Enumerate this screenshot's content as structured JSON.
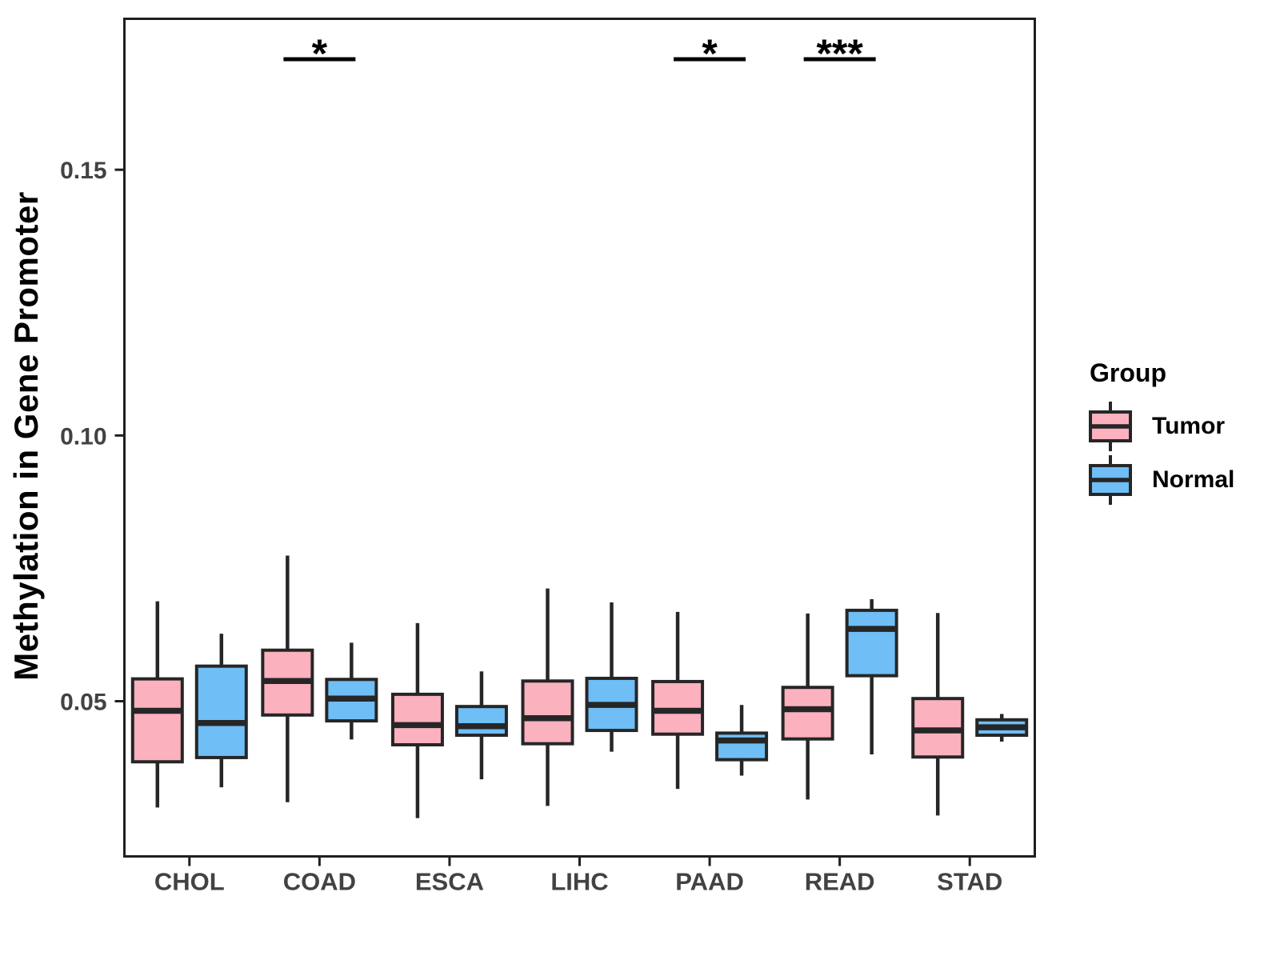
{
  "chart_data": {
    "type": "grouped_boxplot",
    "title": "",
    "xlabel": "",
    "ylabel": "Methylation in Gene Promoter",
    "categories": [
      "CHOL",
      "COAD",
      "ESCA",
      "LIHC",
      "PAAD",
      "READ",
      "STAD"
    ],
    "groups": [
      {
        "name": "Tumor",
        "color": "#FBB1BE"
      },
      {
        "name": "Normal",
        "color": "#6FBEF6"
      }
    ],
    "ylim": [
      0.0208,
      0.1784
    ],
    "yticks": [
      0.05,
      0.1,
      0.15
    ],
    "ytick_labels": [
      "0.05",
      "0.10",
      "0.15"
    ],
    "grid": "off",
    "legend": {
      "title": "Group",
      "position": "right"
    },
    "series": [
      {
        "group": "Tumor",
        "stat_order": [
          "whisker_low",
          "q1",
          "median",
          "q3",
          "whisker_high"
        ],
        "values": [
          [
            0.03,
            0.0386,
            0.0482,
            0.0542,
            0.0688
          ],
          [
            0.031,
            0.0474,
            0.0538,
            0.0596,
            0.0774
          ],
          [
            0.028,
            0.0418,
            0.0455,
            0.0513,
            0.0647
          ],
          [
            0.0303,
            0.042,
            0.0468,
            0.0538,
            0.0712
          ],
          [
            0.0335,
            0.0438,
            0.0482,
            0.0537,
            0.0668
          ],
          [
            0.0315,
            0.0429,
            0.0485,
            0.0526,
            0.0665
          ],
          [
            0.0285,
            0.0395,
            0.0445,
            0.0505,
            0.0666
          ]
        ]
      },
      {
        "group": "Normal",
        "stat_order": [
          "whisker_low",
          "q1",
          "median",
          "q3",
          "whisker_high"
        ],
        "values": [
          [
            0.0338,
            0.0394,
            0.0459,
            0.0566,
            0.0627
          ],
          [
            0.0428,
            0.0463,
            0.0505,
            0.0541,
            0.061
          ],
          [
            0.0353,
            0.0436,
            0.0453,
            0.049,
            0.0556
          ],
          [
            0.0405,
            0.0445,
            0.0493,
            0.0543,
            0.0686
          ],
          [
            0.036,
            0.039,
            0.0426,
            0.044,
            0.0493
          ],
          [
            0.04,
            0.0548,
            0.0636,
            0.0671,
            0.0692
          ],
          [
            0.0424,
            0.0436,
            0.0451,
            0.0465,
            0.0476
          ]
        ]
      }
    ],
    "significance": [
      {
        "category": "COAD",
        "label": "*"
      },
      {
        "category": "PAAD",
        "label": "*"
      },
      {
        "category": "READ",
        "label": "***"
      }
    ],
    "colors": {
      "box_border": "#262626",
      "panel_border": "#1f1f1f",
      "axis_text": "#424242",
      "sig_marks": "#000000"
    }
  }
}
